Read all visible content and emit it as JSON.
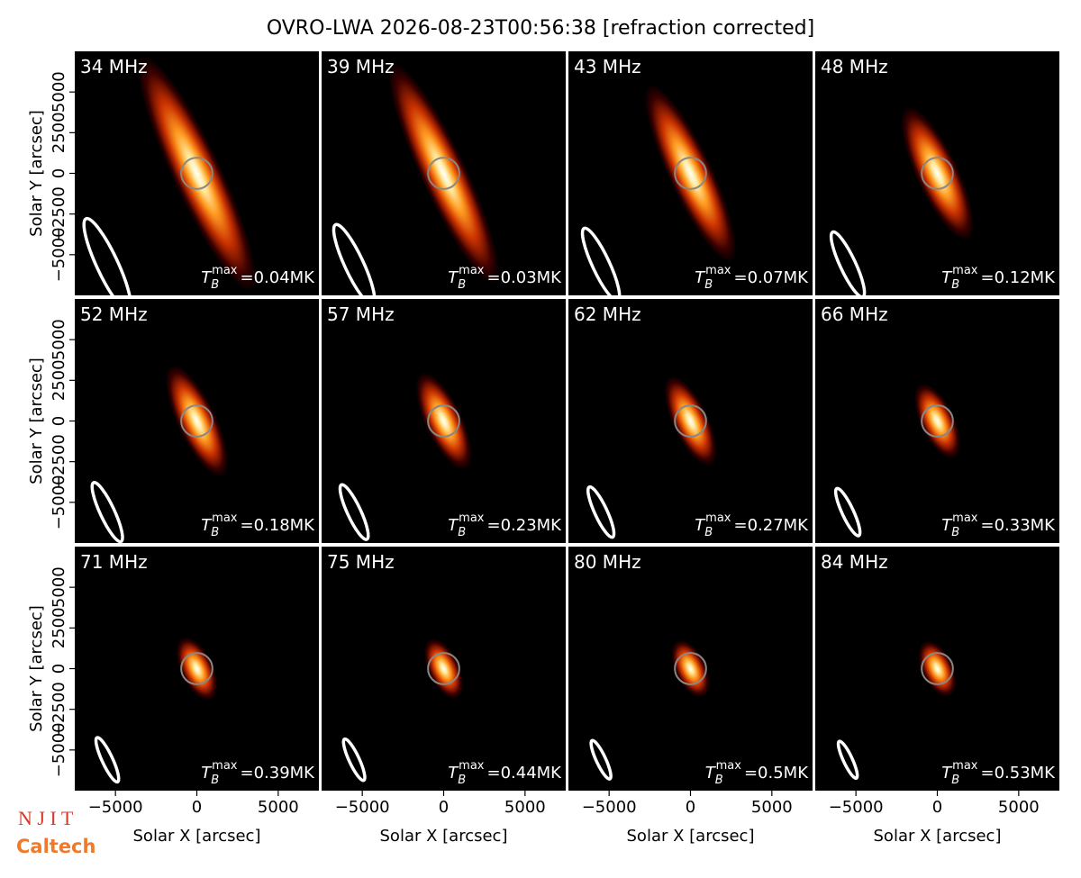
{
  "chart_data": {
    "type": "image-grid",
    "title": "OVRO-LWA 2026-08-23T00:56:38 [refraction corrected]",
    "xlabel": "Solar X [arcsec]",
    "ylabel": "Solar Y [arcsec]",
    "xlim": [
      -7500,
      7500
    ],
    "ylim": [
      -7500,
      7500
    ],
    "xticks": [
      {
        "value": -5000,
        "label": "−5000"
      },
      0,
      5000
    ],
    "yticks": [
      {
        "value": -5000,
        "label": "−5000"
      },
      {
        "value": -2500,
        "label": "−2500"
      },
      0,
      2500,
      5000
    ],
    "tb_symbol": "T",
    "tb_sub": "B",
    "tb_sup": "max",
    "tb_equals": "=",
    "solar_radius": 960,
    "angle": -25,
    "beam_center": [
      -5500,
      -5600
    ],
    "panels": [
      {
        "freq": "34 MHz",
        "tb": "0.04MK",
        "beam": [
          6200,
          1300
        ],
        "source": [
          16000,
          3000
        ]
      },
      {
        "freq": "39 MHz",
        "tb": "0.03MK",
        "beam": [
          5400,
          1150
        ],
        "source": [
          15000,
          2800
        ]
      },
      {
        "freq": "43 MHz",
        "tb": "0.07MK",
        "beam": [
          4900,
          1050
        ],
        "source": [
          12000,
          2700
        ]
      },
      {
        "freq": "48 MHz",
        "tb": "0.12MK",
        "beam": [
          4400,
          950
        ],
        "source": [
          9000,
          2600
        ]
      },
      {
        "freq": "52 MHz",
        "tb": "0.18MK",
        "beam": [
          4000,
          880
        ],
        "source": [
          7500,
          2400
        ]
      },
      {
        "freq": "57 MHz",
        "tb": "0.23MK",
        "beam": [
          3700,
          820
        ],
        "source": [
          6500,
          2300
        ]
      },
      {
        "freq": "62 MHz",
        "tb": "0.27MK",
        "beam": [
          3400,
          760
        ],
        "source": [
          6000,
          2200
        ]
      },
      {
        "freq": "66 MHz",
        "tb": "0.33MK",
        "beam": [
          3200,
          700
        ],
        "source": [
          5000,
          2100
        ]
      },
      {
        "freq": "71 MHz",
        "tb": "0.39MK",
        "beam": [
          3000,
          650
        ],
        "source": [
          4200,
          2000
        ]
      },
      {
        "freq": "75 MHz",
        "tb": "0.44MK",
        "beam": [
          2800,
          620
        ],
        "source": [
          4000,
          1900
        ]
      },
      {
        "freq": "80 MHz",
        "tb": "0.5MK",
        "beam": [
          2600,
          580
        ],
        "source": [
          3800,
          1900
        ]
      },
      {
        "freq": "84 MHz",
        "tb": "0.53MK",
        "beam": [
          2500,
          550
        ],
        "source": [
          3700,
          1900
        ]
      }
    ],
    "logos": [
      "N J I T",
      "Caltech"
    ]
  }
}
